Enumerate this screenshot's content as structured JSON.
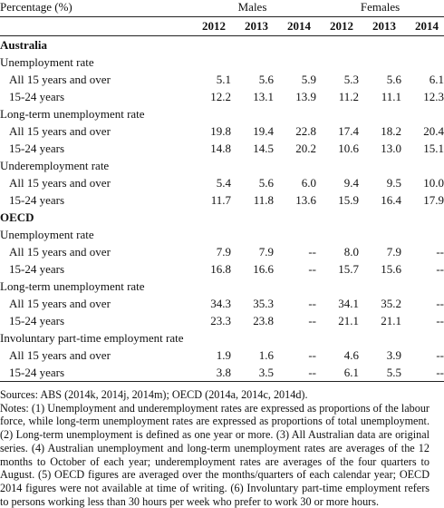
{
  "header": {
    "corner_label": "Percentage (%)",
    "group_males": "Males",
    "group_females": "Females",
    "years": [
      "2012",
      "2013",
      "2014",
      "2012",
      "2013",
      "2014"
    ]
  },
  "rows": [
    {
      "type": "section",
      "label": "Australia"
    },
    {
      "type": "group",
      "label": "Unemployment rate"
    },
    {
      "type": "data",
      "label": "All 15 years and over",
      "values": [
        "5.1",
        "5.6",
        "5.9",
        "5.3",
        "5.6",
        "6.1"
      ]
    },
    {
      "type": "data",
      "label": "15-24 years",
      "values": [
        "12.2",
        "13.1",
        "13.9",
        "11.2",
        "11.1",
        "12.3"
      ]
    },
    {
      "type": "group",
      "label": "Long-term unemployment rate"
    },
    {
      "type": "data",
      "label": "All 15 years and over",
      "values": [
        "19.8",
        "19.4",
        "22.8",
        "17.4",
        "18.2",
        "20.4"
      ]
    },
    {
      "type": "data",
      "label": "15-24 years",
      "values": [
        "14.8",
        "14.5",
        "20.2",
        "10.6",
        "13.0",
        "15.1"
      ]
    },
    {
      "type": "group",
      "label": "Underemployment rate"
    },
    {
      "type": "data",
      "label": "All 15 years and over",
      "values": [
        "5.4",
        "5.6",
        "6.0",
        "9.4",
        "9.5",
        "10.0"
      ]
    },
    {
      "type": "data",
      "label": "15-24 years",
      "values": [
        "11.7",
        "11.8",
        "13.6",
        "15.9",
        "16.4",
        "17.9"
      ]
    },
    {
      "type": "section",
      "label": "OECD"
    },
    {
      "type": "group",
      "label": "Unemployment rate"
    },
    {
      "type": "data",
      "label": "All 15 years and over",
      "values": [
        "7.9",
        "7.9",
        "--",
        "8.0",
        "7.9",
        "--"
      ]
    },
    {
      "type": "data",
      "label": "15-24 years",
      "values": [
        "16.8",
        "16.6",
        "--",
        "15.7",
        "15.6",
        "--"
      ]
    },
    {
      "type": "group",
      "label": "Long-term unemployment rate"
    },
    {
      "type": "data",
      "label": "All 15 years and over",
      "values": [
        "34.3",
        "35.3",
        "--",
        "34.1",
        "35.2",
        "--"
      ]
    },
    {
      "type": "data",
      "label": "15-24 years",
      "values": [
        "23.3",
        "23.8",
        "--",
        "21.1",
        "21.1",
        "--"
      ]
    },
    {
      "type": "group",
      "label": "Involuntary part-time employment rate"
    },
    {
      "type": "data",
      "label": "All 15 years and over",
      "values": [
        "1.9",
        "1.6",
        "--",
        "4.6",
        "3.9",
        "--"
      ]
    },
    {
      "type": "data",
      "label": "15-24 years",
      "values": [
        "3.8",
        "3.5",
        "--",
        "6.1",
        "5.5",
        "--"
      ]
    }
  ],
  "sources": "Sources: ABS (2014k, 2014j, 2014m); OECD (2014a, 2014c, 2014d).",
  "notes": "Notes: (1) Unemployment and underemployment rates are expressed as proportions of the labour force, while long-term unemployment rates are expressed as proportions of total unemployment. (2) Long-term unemployment is defined as one year or more. (3) All Australian data are original series. (4) Australian unemployment and long-term unemployment rates are averages of the 12 months to October of each year; underemployment rates are averages of the four quarters to August. (5) OECD figures are averaged over the months/quarters of each calendar year; OECD 2014 figures were not available at time of writing. (6) Involuntary part-time employment refers to persons working less than 30 hours per week who prefer to work 30 or more hours."
}
